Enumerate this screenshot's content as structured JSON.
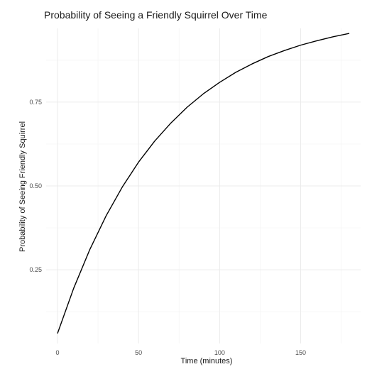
{
  "chart_data": {
    "type": "line",
    "title": "Probability of Seeing a Friendly Squirrel Over Time",
    "xlabel": "Time (minutes)",
    "ylabel": "Probability of Seeing Friendly Squirrel",
    "xlim": [
      -7,
      187
    ],
    "ylim": [
      0.03,
      0.97
    ],
    "x_ticks": [
      0,
      50,
      100,
      150
    ],
    "x_tick_labels": [
      "0",
      "50",
      "100",
      "150"
    ],
    "y_ticks": [
      0.25,
      0.5,
      0.75
    ],
    "y_tick_labels": [
      "0.25",
      "0.50",
      "0.75"
    ],
    "grid": true,
    "legend": "none",
    "colors": {
      "line": "#000000",
      "grid_major": "#ebebeb",
      "grid_minor": "#f4f4f4",
      "background": "#ffffff"
    },
    "series": [
      {
        "x": [
          0,
          10,
          20,
          30,
          40,
          50,
          60,
          70,
          80,
          90,
          100,
          110,
          120,
          130,
          140,
          150,
          160,
          170,
          180
        ],
        "y": [
          0.06,
          0.195,
          0.311,
          0.411,
          0.497,
          0.571,
          0.634,
          0.688,
          0.735,
          0.775,
          0.809,
          0.839,
          0.864,
          0.886,
          0.904,
          0.92,
          0.933,
          0.945,
          0.955
        ]
      }
    ]
  }
}
